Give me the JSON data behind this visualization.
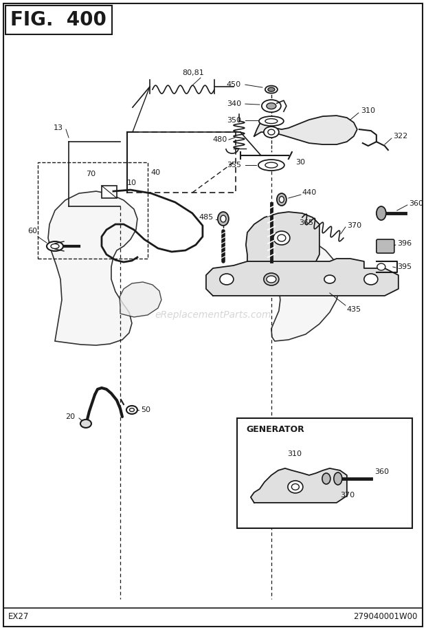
{
  "title": "FIG.  400",
  "footer_left": "EX27",
  "footer_right": "279040001W00",
  "watermark": "eReplacementParts.com",
  "generator_label": "GENERATOR",
  "bg_color": "#ffffff",
  "line_color": "#1a1a1a",
  "fig_w": 6.2,
  "fig_h": 9.16,
  "dpi": 100
}
